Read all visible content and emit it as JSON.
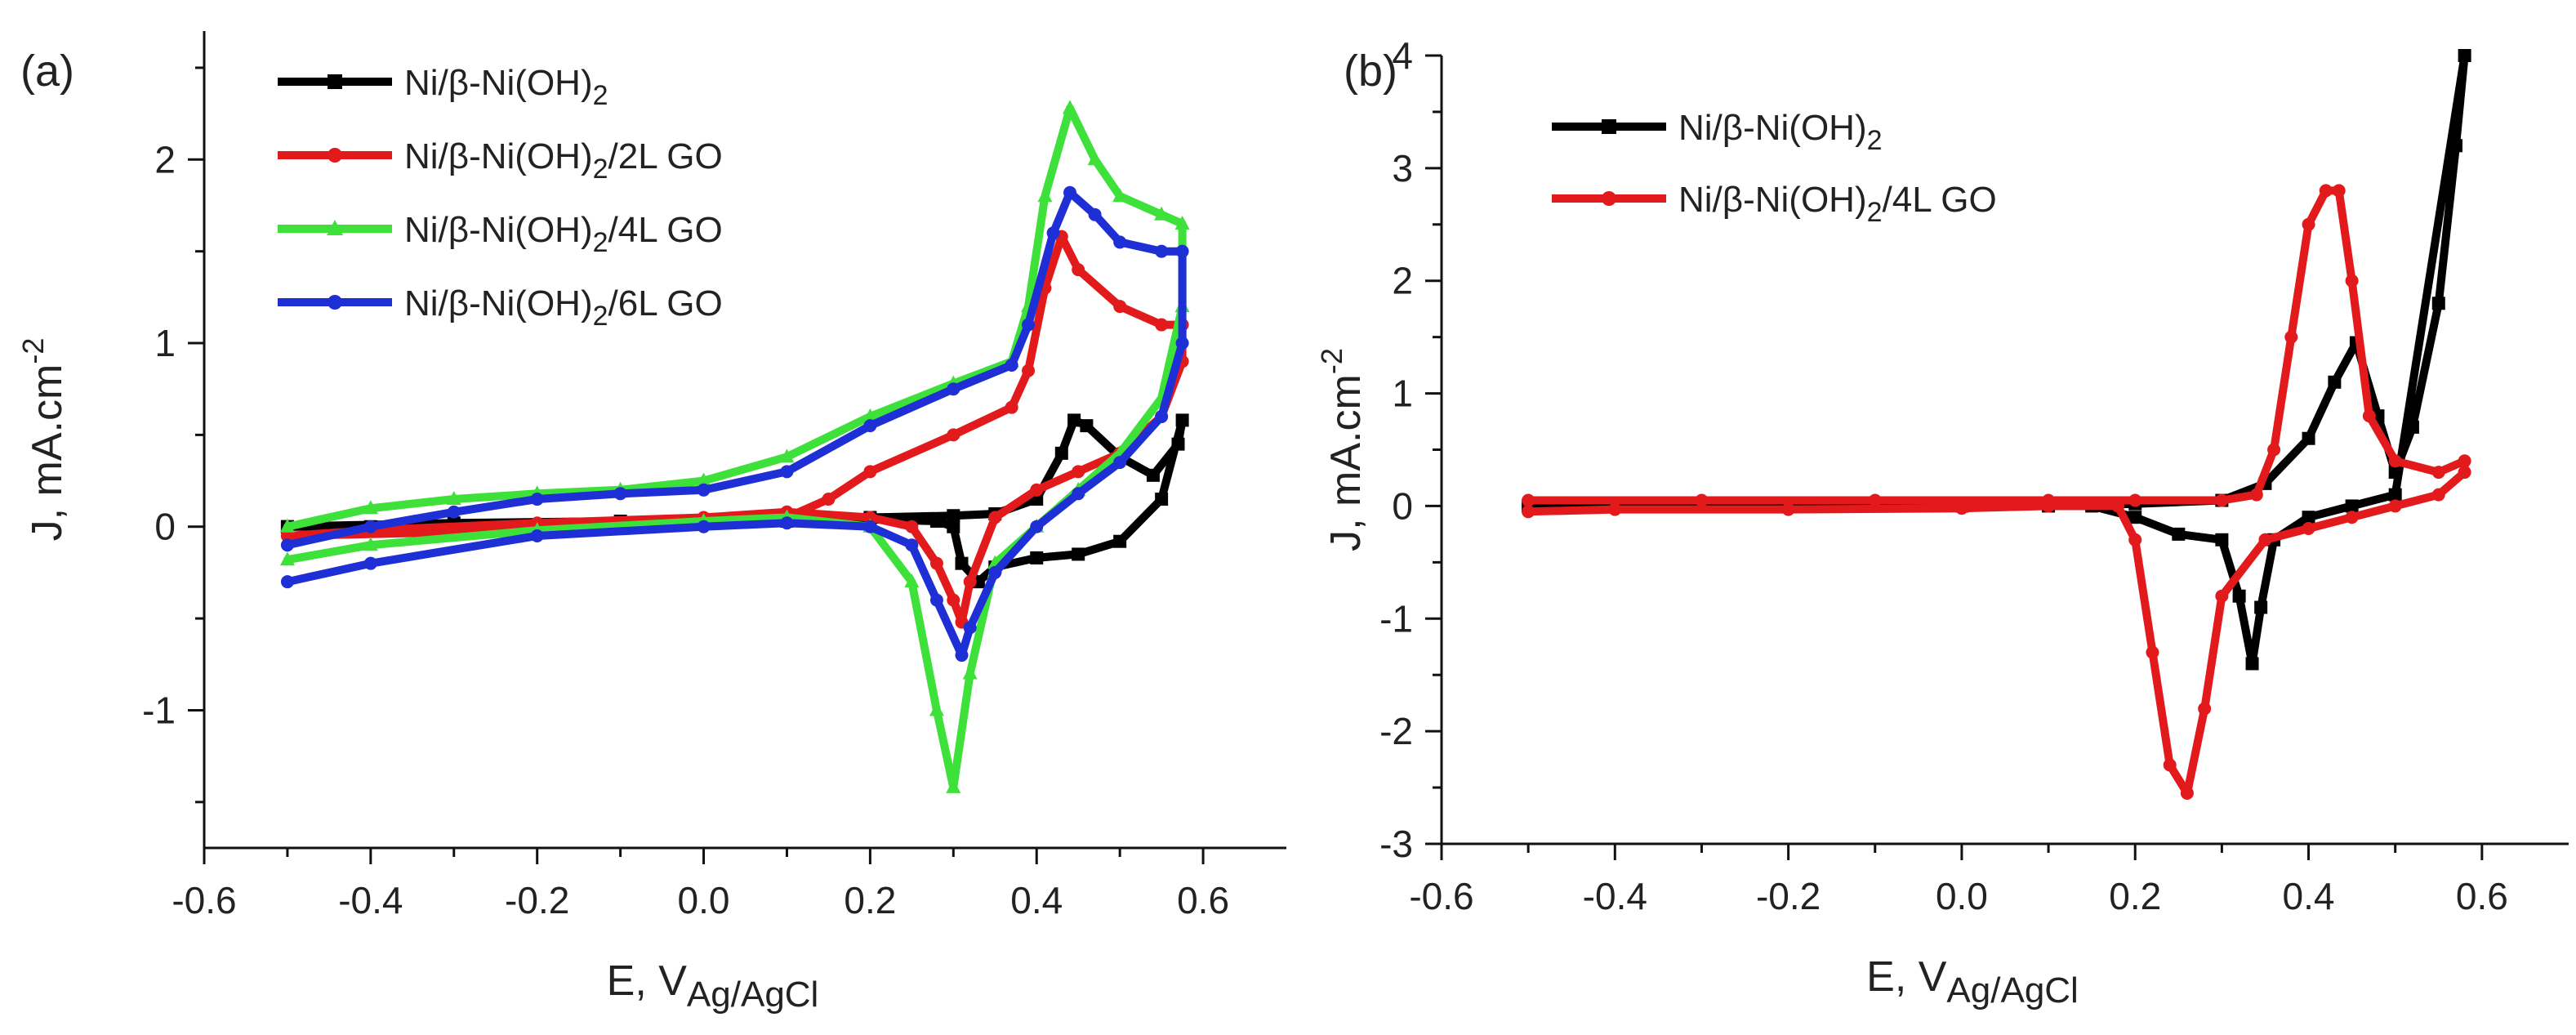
{
  "chart_data": [
    {
      "panel_label": "(a)",
      "type": "line",
      "xlabel": {
        "main": "E, V",
        "sub": "Ag/AgCl"
      },
      "ylabel": {
        "main": "J, mA.cm",
        "sup": "-2"
      },
      "xlim": [
        -0.6,
        0.7
      ],
      "ylim": [
        -1.75,
        2.7
      ],
      "xticks": [
        -0.6,
        -0.4,
        -0.2,
        0.0,
        0.2,
        0.4,
        0.6
      ],
      "xtick_labels": [
        "-0.6",
        "-0.4",
        "-0.2",
        "0.0",
        "0.2",
        "0.4",
        "0.6"
      ],
      "yticks": [
        -1,
        0,
        1,
        2
      ],
      "ytick_labels": [
        "-1",
        "0",
        "1",
        "2"
      ],
      "legend_position": "top-left",
      "series": [
        {
          "name": "Ni/β-Ni(OH)2",
          "label_parts": [
            "Ni/β-Ni(OH)",
            "2",
            ""
          ],
          "color": "#000000",
          "marker": "square",
          "x": [
            -0.5,
            -0.3,
            -0.1,
            0.1,
            0.2,
            0.3,
            0.35,
            0.4,
            0.43,
            0.445,
            0.46,
            0.5,
            0.54,
            0.57,
            0.575,
            0.55,
            0.5,
            0.45,
            0.4,
            0.35,
            0.33,
            0.31,
            0.3,
            0.28,
            0.2,
            0.1,
            0.0,
            -0.2,
            -0.4,
            -0.5
          ],
          "y": [
            0.0,
            0.02,
            0.03,
            0.04,
            0.05,
            0.06,
            0.07,
            0.15,
            0.4,
            0.58,
            0.55,
            0.38,
            0.28,
            0.45,
            0.58,
            0.15,
            -0.08,
            -0.15,
            -0.17,
            -0.22,
            -0.3,
            -0.2,
            0.0,
            0.03,
            0.04,
            0.03,
            0.02,
            0.01,
            0.0,
            0.0
          ]
        },
        {
          "name": "Ni/β-Ni(OH)2/2L GO",
          "label_parts": [
            "Ni/β-Ni(OH)",
            "2",
            "/2L GO"
          ],
          "color": "#e31a1c",
          "marker": "circle",
          "x": [
            -0.5,
            -0.3,
            -0.1,
            0.1,
            0.15,
            0.2,
            0.3,
            0.37,
            0.39,
            0.41,
            0.43,
            0.45,
            0.5,
            0.55,
            0.575,
            0.575,
            0.55,
            0.5,
            0.45,
            0.4,
            0.35,
            0.32,
            0.31,
            0.3,
            0.28,
            0.25,
            0.2,
            0.1,
            0.0,
            -0.2,
            -0.4,
            -0.5
          ],
          "y": [
            -0.05,
            -0.03,
            0.0,
            0.05,
            0.15,
            0.3,
            0.5,
            0.65,
            0.85,
            1.3,
            1.58,
            1.4,
            1.2,
            1.1,
            1.1,
            0.9,
            0.6,
            0.4,
            0.3,
            0.2,
            0.05,
            -0.3,
            -0.52,
            -0.4,
            -0.2,
            0.0,
            0.05,
            0.08,
            0.05,
            0.02,
            -0.02,
            -0.05
          ]
        },
        {
          "name": "Ni/β-Ni(OH)2/4L GO",
          "label_parts": [
            "Ni/β-Ni(OH)",
            "2",
            "/4L GO"
          ],
          "color": "#3ee03a",
          "marker": "triangle",
          "x": [
            -0.5,
            -0.4,
            -0.3,
            -0.2,
            -0.1,
            0.0,
            0.1,
            0.2,
            0.3,
            0.37,
            0.39,
            0.41,
            0.44,
            0.47,
            0.5,
            0.55,
            0.575,
            0.575,
            0.55,
            0.5,
            0.45,
            0.4,
            0.35,
            0.32,
            0.3,
            0.28,
            0.25,
            0.2,
            0.1,
            0.0,
            -0.2,
            -0.4,
            -0.5
          ],
          "y": [
            0.0,
            0.1,
            0.15,
            0.18,
            0.2,
            0.25,
            0.38,
            0.6,
            0.78,
            0.9,
            1.2,
            1.8,
            2.28,
            2.0,
            1.8,
            1.7,
            1.65,
            1.2,
            0.7,
            0.4,
            0.2,
            0.0,
            -0.2,
            -0.8,
            -1.42,
            -1.0,
            -0.3,
            0.0,
            0.05,
            0.03,
            -0.02,
            -0.1,
            -0.18
          ]
        },
        {
          "name": "Ni/β-Ni(OH)2/6L GO",
          "label_parts": [
            "Ni/β-Ni(OH)",
            "2",
            "/6L GO"
          ],
          "color": "#1f2fd6",
          "marker": "circle",
          "x": [
            -0.5,
            -0.4,
            -0.3,
            -0.2,
            -0.1,
            0.0,
            0.1,
            0.2,
            0.3,
            0.37,
            0.39,
            0.42,
            0.44,
            0.47,
            0.5,
            0.55,
            0.575,
            0.575,
            0.55,
            0.5,
            0.45,
            0.4,
            0.35,
            0.32,
            0.31,
            0.28,
            0.25,
            0.2,
            0.1,
            0.0,
            -0.2,
            -0.4,
            -0.5
          ],
          "y": [
            -0.1,
            0.0,
            0.08,
            0.15,
            0.18,
            0.2,
            0.3,
            0.55,
            0.75,
            0.88,
            1.1,
            1.6,
            1.82,
            1.7,
            1.55,
            1.5,
            1.5,
            1.0,
            0.6,
            0.35,
            0.18,
            0.0,
            -0.25,
            -0.55,
            -0.7,
            -0.4,
            -0.1,
            0.0,
            0.02,
            0.0,
            -0.05,
            -0.2,
            -0.3
          ]
        }
      ]
    },
    {
      "panel_label": "(b)",
      "type": "line",
      "xlabel": {
        "main": "E, V",
        "sub": "Ag/AgCl"
      },
      "ylabel": {
        "main": "J, mA.cm",
        "sup": "-2"
      },
      "xlim": [
        -0.6,
        0.7
      ],
      "ylim": [
        -3.0,
        4.0
      ],
      "xticks": [
        -0.6,
        -0.4,
        -0.2,
        0.0,
        0.2,
        0.4,
        0.6
      ],
      "xtick_labels": [
        "-0.6",
        "-0.4",
        "-0.2",
        "0.0",
        "0.2",
        "0.4",
        "0.6"
      ],
      "yticks": [
        -3,
        -2,
        -1,
        0,
        1,
        2,
        3,
        4
      ],
      "ytick_labels": [
        "-3",
        "-2",
        "-1",
        "0",
        "1",
        "2",
        "3",
        "4"
      ],
      "legend_position": "top-left",
      "series": [
        {
          "name": "Ni/β-Ni(OH)2",
          "label_parts": [
            "Ni/β-Ni(OH)",
            "2",
            ""
          ],
          "color": "#000000",
          "marker": "square",
          "x": [
            -0.5,
            -0.3,
            -0.1,
            0.1,
            0.2,
            0.3,
            0.35,
            0.4,
            0.43,
            0.455,
            0.48,
            0.5,
            0.52,
            0.55,
            0.57,
            0.58,
            0.5,
            0.45,
            0.4,
            0.36,
            0.345,
            0.335,
            0.32,
            0.3,
            0.25,
            0.2,
            0.15,
            0.0,
            -0.2,
            -0.4,
            -0.5
          ],
          "y": [
            0.0,
            0.0,
            0.0,
            0.0,
            0.02,
            0.05,
            0.2,
            0.6,
            1.1,
            1.45,
            0.8,
            0.3,
            0.7,
            1.8,
            3.2,
            4.0,
            0.1,
            0.0,
            -0.1,
            -0.3,
            -0.9,
            -1.4,
            -0.8,
            -0.3,
            -0.25,
            -0.1,
            0.0,
            0.0,
            0.0,
            0.0,
            0.0
          ]
        },
        {
          "name": "Ni/β-Ni(OH)2/4L GO",
          "label_parts": [
            "Ni/β-Ni(OH)",
            "2",
            "/4L GO"
          ],
          "color": "#e31a1c",
          "marker": "circle",
          "x": [
            -0.5,
            -0.3,
            -0.1,
            0.1,
            0.2,
            0.3,
            0.34,
            0.36,
            0.38,
            0.4,
            0.42,
            0.435,
            0.45,
            0.47,
            0.5,
            0.55,
            0.58,
            0.58,
            0.55,
            0.5,
            0.45,
            0.4,
            0.35,
            0.3,
            0.28,
            0.26,
            0.24,
            0.22,
            0.2,
            0.18,
            0.1,
            0.0,
            -0.2,
            -0.4,
            -0.5
          ],
          "y": [
            0.05,
            0.05,
            0.05,
            0.05,
            0.05,
            0.05,
            0.1,
            0.5,
            1.5,
            2.5,
            2.8,
            2.8,
            2.0,
            0.8,
            0.4,
            0.3,
            0.4,
            0.3,
            0.1,
            0.0,
            -0.1,
            -0.2,
            -0.3,
            -0.8,
            -1.8,
            -2.55,
            -2.3,
            -1.3,
            -0.3,
            0.0,
            0.0,
            -0.02,
            -0.03,
            -0.03,
            -0.05
          ]
        }
      ]
    }
  ]
}
